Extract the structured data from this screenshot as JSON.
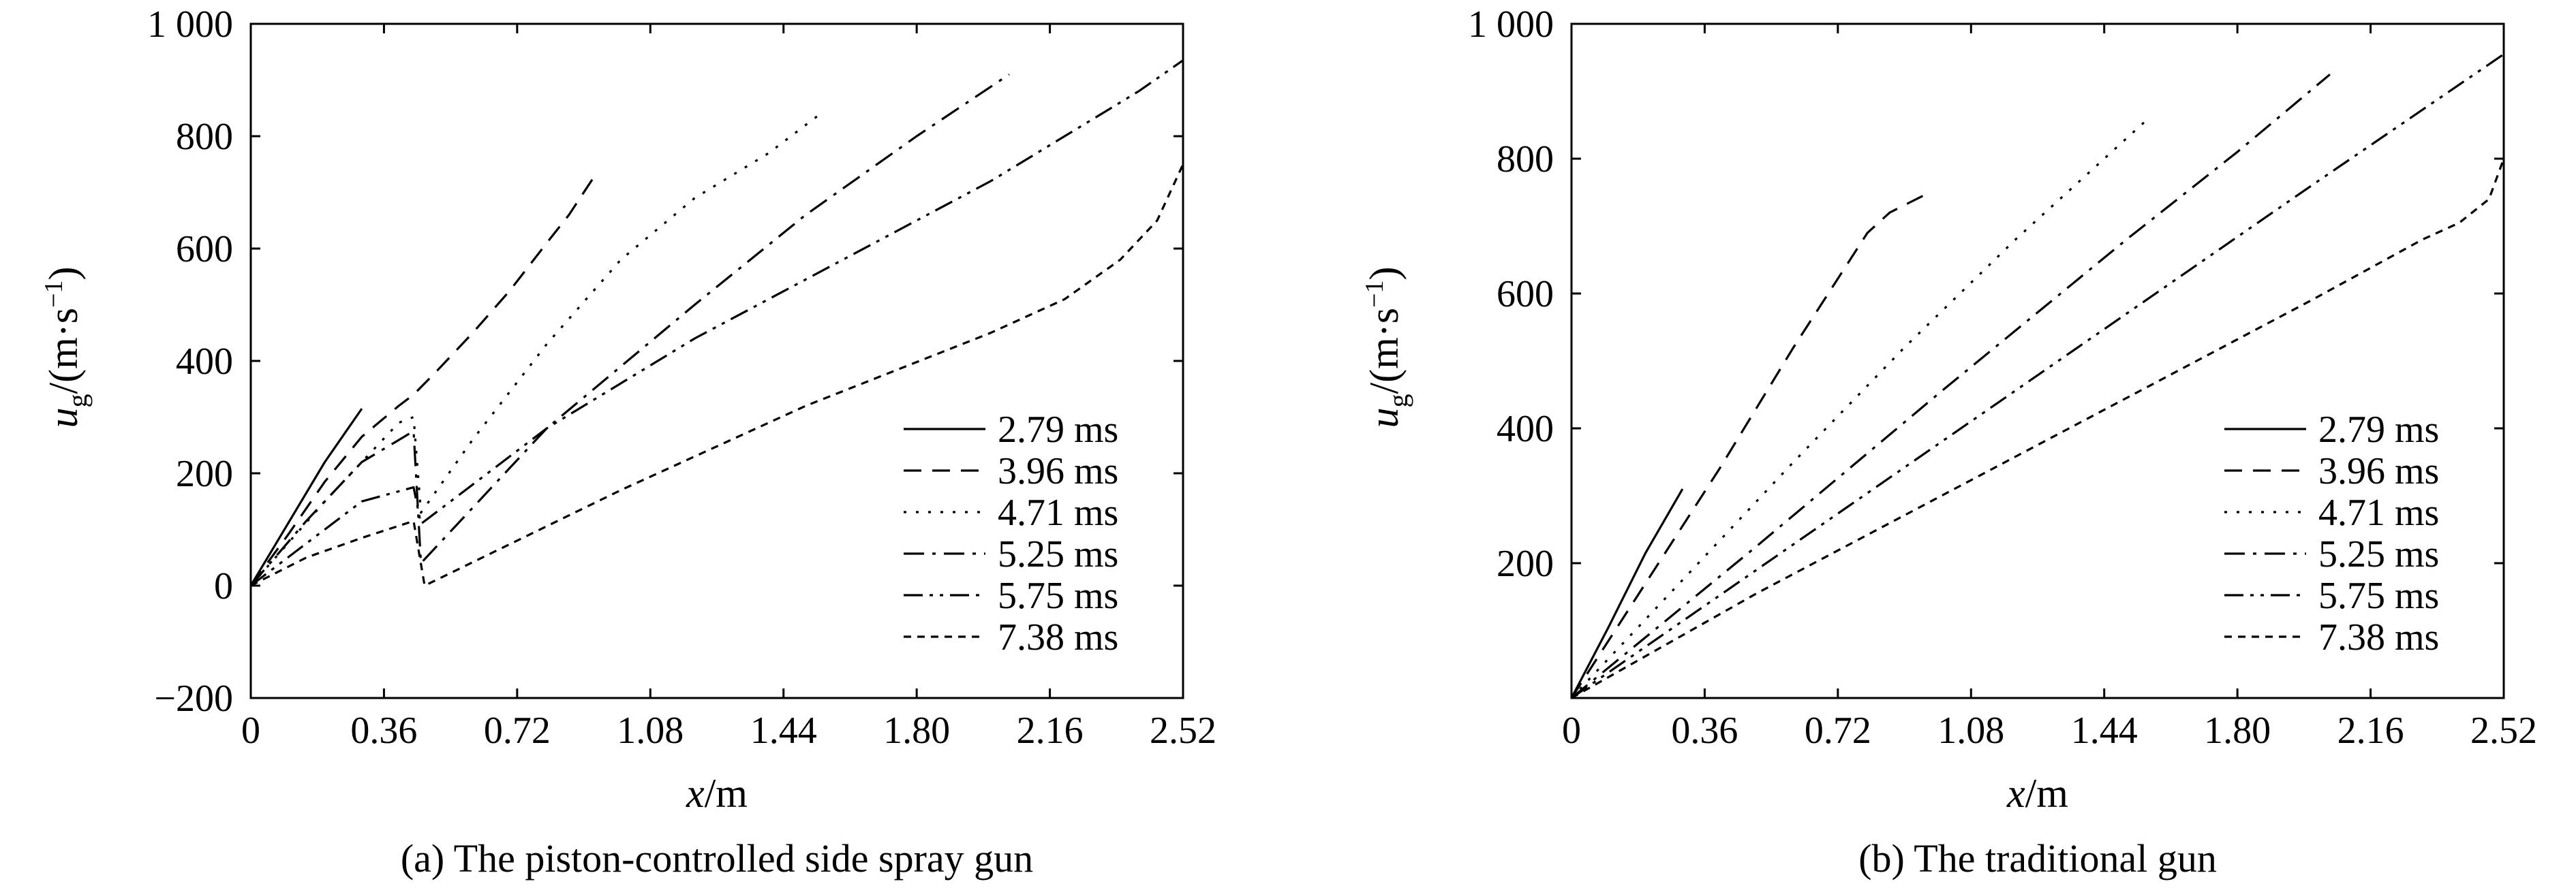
{
  "chart_data": [
    {
      "type": "line",
      "caption": "(a) The piston-controlled side spray gun",
      "xlabel_italic": "x",
      "xlabel_unit": "/m",
      "ylabel_italic": "u",
      "ylabel_sub": "g",
      "ylabel_unit": "/(m·s",
      "ylabel_exp": "−1",
      "ylabel_close": ")",
      "xlim": [
        0,
        2.52
      ],
      "ylim": [
        -200,
        1000
      ],
      "xticks": [
        0,
        0.36,
        0.72,
        1.08,
        1.44,
        1.8,
        2.16,
        2.52
      ],
      "xtick_labels": [
        "0",
        "0.36",
        "0.72",
        "1.08",
        "1.44",
        "1.80",
        "2.16",
        "2.52"
      ],
      "yticks": [
        -200,
        0,
        200,
        400,
        600,
        800,
        1000
      ],
      "ytick_labels": [
        "−200",
        "0",
        "200",
        "400",
        "600",
        "800",
        "1 000"
      ],
      "grid": false,
      "legend_position": "lower-right",
      "series": [
        {
          "name": "2.79 ms",
          "dash": "solid",
          "x": [
            0,
            0.1,
            0.2,
            0.3
          ],
          "y": [
            0,
            110,
            220,
            315
          ]
        },
        {
          "name": "3.96 ms",
          "dash": "dashed",
          "x": [
            0,
            0.1,
            0.2,
            0.3,
            0.4,
            0.44,
            0.5,
            0.6,
            0.7,
            0.8,
            0.86,
            0.93
          ],
          "y": [
            0,
            90,
            185,
            265,
            320,
            340,
            380,
            450,
            525,
            610,
            660,
            730
          ]
        },
        {
          "name": "4.71 ms",
          "dash": "dotted",
          "x": [
            0,
            0.2,
            0.4,
            0.44,
            0.46,
            0.6,
            0.8,
            1.0,
            1.2,
            1.4,
            1.54
          ],
          "y": [
            0,
            150,
            290,
            300,
            130,
            260,
            430,
            580,
            690,
            770,
            840
          ]
        },
        {
          "name": "5.25 ms",
          "dash": "dashdot",
          "x": [
            0,
            0.15,
            0.3,
            0.44,
            0.46,
            0.8,
            1.2,
            1.5,
            1.8,
            2.05
          ],
          "y": [
            0,
            115,
            220,
            275,
            40,
            280,
            500,
            660,
            800,
            910
          ]
        },
        {
          "name": "5.75 ms",
          "dash": "dashdotdot",
          "x": [
            0,
            0.15,
            0.3,
            0.44,
            0.46,
            0.8,
            1.2,
            1.6,
            2.0,
            2.4,
            2.52
          ],
          "y": [
            0,
            75,
            150,
            175,
            110,
            280,
            440,
            580,
            720,
            880,
            935
          ]
        },
        {
          "name": "7.38 ms",
          "dash": "shortdash",
          "x": [
            0,
            0.15,
            0.3,
            0.44,
            0.47,
            1.0,
            1.5,
            2.0,
            2.2,
            2.35,
            2.45,
            2.52
          ],
          "y": [
            0,
            50,
            85,
            115,
            0,
            170,
            320,
            450,
            510,
            580,
            650,
            750
          ]
        }
      ]
    },
    {
      "type": "line",
      "caption": "(b) The traditional gun",
      "xlabel_italic": "x",
      "xlabel_unit": "/m",
      "ylabel_italic": "u",
      "ylabel_sub": "g",
      "ylabel_unit": "/(m·s",
      "ylabel_exp": "−1",
      "ylabel_close": ")",
      "xlim": [
        0,
        2.52
      ],
      "ylim": [
        0,
        1000
      ],
      "xticks": [
        0,
        0.36,
        0.72,
        1.08,
        1.44,
        1.8,
        2.16,
        2.52
      ],
      "xtick_labels": [
        "0",
        "0.36",
        "0.72",
        "1.08",
        "1.44",
        "1.80",
        "2.16",
        "2.52"
      ],
      "yticks": [
        200,
        400,
        600,
        800,
        1000
      ],
      "ytick_labels": [
        "200",
        "400",
        "600",
        "800",
        "1 000"
      ],
      "grid": false,
      "legend_position": "lower-right",
      "series": [
        {
          "name": "2.79 ms",
          "dash": "solid",
          "x": [
            0,
            0.1,
            0.2,
            0.3
          ],
          "y": [
            0,
            105,
            215,
            310
          ]
        },
        {
          "name": "3.96 ms",
          "dash": "dashed",
          "x": [
            0,
            0.2,
            0.4,
            0.6,
            0.8,
            0.86,
            0.95
          ],
          "y": [
            0,
            170,
            340,
            520,
            690,
            720,
            745
          ]
        },
        {
          "name": "4.71 ms",
          "dash": "dotted",
          "x": [
            0,
            0.3,
            0.6,
            0.9,
            1.2,
            1.4,
            1.56
          ],
          "y": [
            0,
            175,
            350,
            520,
            680,
            780,
            860
          ]
        },
        {
          "name": "5.25 ms",
          "dash": "dashdot",
          "x": [
            0,
            0.5,
            1.0,
            1.5,
            1.8,
            2.05
          ],
          "y": [
            0,
            225,
            455,
            680,
            810,
            925
          ]
        },
        {
          "name": "5.75 ms",
          "dash": "dashdotdot",
          "x": [
            0,
            0.5,
            1.0,
            1.5,
            2.0,
            2.52
          ],
          "y": [
            0,
            190,
            380,
            570,
            760,
            955
          ]
        },
        {
          "name": "7.38 ms",
          "dash": "shortdash",
          "x": [
            0,
            0.5,
            1.0,
            1.5,
            2.0,
            2.3,
            2.4,
            2.48,
            2.52
          ],
          "y": [
            0,
            155,
            300,
            445,
            590,
            680,
            705,
            740,
            800
          ]
        }
      ]
    }
  ]
}
